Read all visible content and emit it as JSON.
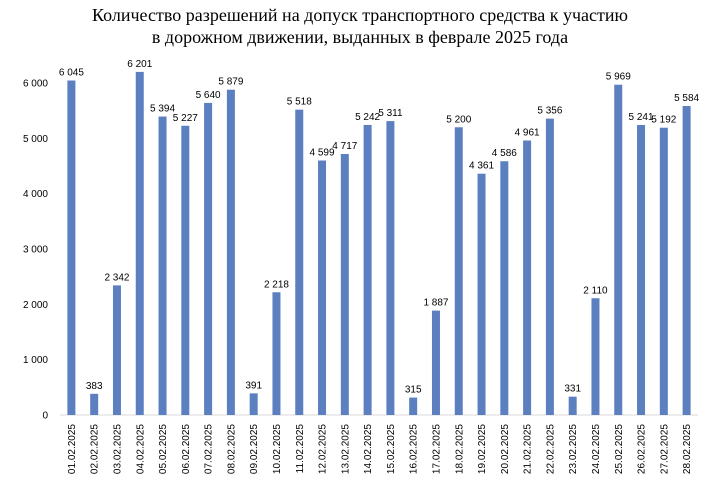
{
  "chart_data": {
    "type": "bar",
    "title_line1": "Количество разрешений на допуск транспортного средства к участию",
    "title_line2": "в дорожном движении, выданных в феврале 2025 года",
    "xlabel": "",
    "ylabel": "",
    "ylim": [
      0,
      6000
    ],
    "yticks": [
      0,
      1000,
      2000,
      3000,
      4000,
      5000,
      6000
    ],
    "ytick_labels": [
      "0",
      "1 000",
      "2 000",
      "3 000",
      "4 000",
      "5 000",
      "6 000"
    ],
    "grid": false,
    "bar_color": "#5b7fbf",
    "categories": [
      "01.02.2025",
      "02.02.2025",
      "03.02.2025",
      "04.02.2025",
      "05.02.2025",
      "06.02.2025",
      "07.02.2025",
      "08.02.2025",
      "09.02.2025",
      "10.02.2025",
      "11.02.2025",
      "12.02.2025",
      "13.02.2025",
      "14.02.2025",
      "15.02.2025",
      "16.02.2025",
      "17.02.2025",
      "18.02.2025",
      "19.02.2025",
      "20.02.2025",
      "21.02.2025",
      "22.02.2025",
      "23.02.2025",
      "24.02.2025",
      "25.02.2025",
      "26.02.2025",
      "27.02.2025",
      "28.02.2025"
    ],
    "values": [
      6045,
      383,
      2342,
      6201,
      5394,
      5227,
      5640,
      5879,
      391,
      2218,
      5518,
      4599,
      4717,
      5242,
      5311,
      315,
      1887,
      5200,
      4361,
      4586,
      4961,
      5356,
      331,
      2110,
      5969,
      5241,
      5192,
      5584
    ],
    "data_labels": [
      "6 045",
      "383",
      "2 342",
      "6 201",
      "5 394",
      "5 227",
      "5 640",
      "5 879",
      "391",
      "2 218",
      "5 518",
      "4 599",
      "4 717",
      "5 242",
      "5 311",
      "315",
      "1 887",
      "5 200",
      "4 361",
      "4 586",
      "4 961",
      "5 356",
      "331",
      "2 110",
      "5 969",
      "5 241",
      "5 192",
      "5 584"
    ]
  }
}
